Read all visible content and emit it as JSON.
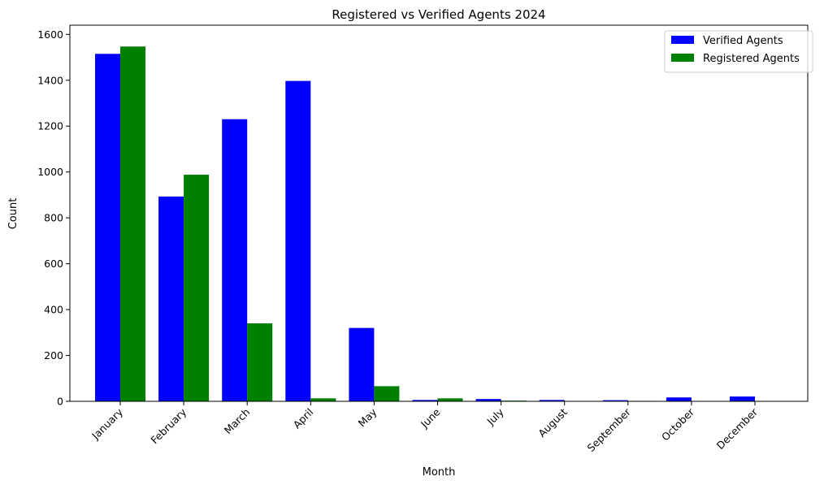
{
  "chart_data": {
    "type": "bar",
    "title": "Registered vs Verified Agents 2024",
    "xlabel": "Month",
    "ylabel": "Count",
    "categories": [
      "January",
      "February",
      "March",
      "April",
      "May",
      "June",
      "July",
      "August",
      "September",
      "October",
      "December"
    ],
    "series": [
      {
        "name": "Verified Agents",
        "color": "#0000ff",
        "values": [
          1515,
          893,
          1230,
          1397,
          320,
          6,
          10,
          6,
          5,
          17,
          21
        ]
      },
      {
        "name": "Registered Agents",
        "color": "#008000",
        "values": [
          1547,
          988,
          340,
          13,
          66,
          13,
          3,
          0,
          2,
          0,
          0
        ]
      }
    ],
    "ylim": [
      0,
      1640
    ],
    "yticks": [
      0,
      200,
      400,
      600,
      800,
      1000,
      1200,
      1400,
      1600
    ],
    "yticks_labels": [
      "0",
      "200",
      "400",
      "600",
      "800",
      "1000",
      "1200",
      "1400",
      "1600"
    ],
    "grid": false,
    "legend_position": "top-right"
  }
}
